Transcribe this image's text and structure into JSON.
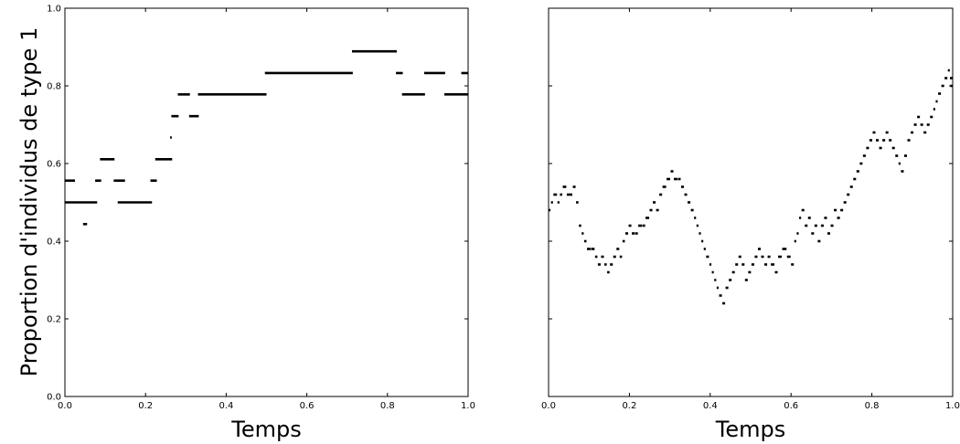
{
  "figure": {
    "ylabel": "Proportion d'individus de type 1",
    "ylabel_color": "#000000"
  },
  "chart_data": [
    {
      "type": "line",
      "title": "",
      "xlabel": "Temps",
      "ylabel": "Proportion d'individus de type 1",
      "xlim": [
        0.0,
        1.0
      ],
      "ylim": [
        0.0,
        1.0
      ],
      "x_ticks": [
        "0.0",
        "0.2",
        "0.4",
        "0.6",
        "0.8",
        "1.0"
      ],
      "y_ticks": [
        "0.0",
        "0.2",
        "0.4",
        "0.6",
        "0.8",
        "1.0"
      ],
      "grid": false,
      "legend": "none",
      "color": "#000000",
      "segments": [
        [
          0.0,
          0.025,
          0.556
        ],
        [
          0.0,
          0.08,
          0.5
        ],
        [
          0.045,
          0.055,
          0.444
        ],
        [
          0.075,
          0.09,
          0.556
        ],
        [
          0.087,
          0.123,
          0.611
        ],
        [
          0.121,
          0.149,
          0.556
        ],
        [
          0.131,
          0.216,
          0.5
        ],
        [
          0.212,
          0.228,
          0.556
        ],
        [
          0.224,
          0.266,
          0.611
        ],
        [
          0.261,
          0.265,
          0.667
        ],
        [
          0.264,
          0.282,
          0.722
        ],
        [
          0.28,
          0.31,
          0.778
        ],
        [
          0.308,
          0.332,
          0.722
        ],
        [
          0.33,
          0.5,
          0.778
        ],
        [
          0.496,
          0.714,
          0.833
        ],
        [
          0.712,
          0.823,
          0.889
        ],
        [
          0.821,
          0.838,
          0.833
        ],
        [
          0.836,
          0.893,
          0.778
        ],
        [
          0.891,
          0.943,
          0.833
        ],
        [
          0.941,
          1.0,
          0.778
        ],
        [
          0.983,
          1.0,
          0.833
        ]
      ]
    },
    {
      "type": "line",
      "title": "",
      "xlabel": "Temps",
      "ylabel": "",
      "xlim": [
        0.0,
        1.0
      ],
      "ylim": [
        0.0,
        1.0
      ],
      "x_ticks": [
        "0.0",
        "0.2",
        "0.4",
        "0.6",
        "0.8",
        "1.0"
      ],
      "y_ticks": [],
      "grid": false,
      "legend": "none",
      "color": "#000000",
      "path": [
        [
          0.0,
          0.48
        ],
        [
          0.006,
          0.5
        ],
        [
          0.012,
          0.52
        ],
        [
          0.022,
          0.5
        ],
        [
          0.028,
          0.52
        ],
        [
          0.035,
          0.54
        ],
        [
          0.045,
          0.52
        ],
        [
          0.06,
          0.54
        ],
        [
          0.068,
          0.5
        ],
        [
          0.075,
          0.44
        ],
        [
          0.082,
          0.42
        ],
        [
          0.088,
          0.4
        ],
        [
          0.095,
          0.38
        ],
        [
          0.105,
          0.38
        ],
        [
          0.115,
          0.36
        ],
        [
          0.122,
          0.34
        ],
        [
          0.13,
          0.36
        ],
        [
          0.138,
          0.34
        ],
        [
          0.145,
          0.32
        ],
        [
          0.152,
          0.34
        ],
        [
          0.16,
          0.36
        ],
        [
          0.168,
          0.38
        ],
        [
          0.176,
          0.36
        ],
        [
          0.183,
          0.4
        ],
        [
          0.19,
          0.42
        ],
        [
          0.198,
          0.44
        ],
        [
          0.206,
          0.42
        ],
        [
          0.215,
          0.42
        ],
        [
          0.222,
          0.44
        ],
        [
          0.232,
          0.44
        ],
        [
          0.24,
          0.46
        ],
        [
          0.25,
          0.48
        ],
        [
          0.258,
          0.5
        ],
        [
          0.266,
          0.48
        ],
        [
          0.274,
          0.52
        ],
        [
          0.282,
          0.54
        ],
        [
          0.292,
          0.56
        ],
        [
          0.302,
          0.58
        ],
        [
          0.31,
          0.56
        ],
        [
          0.32,
          0.56
        ],
        [
          0.328,
          0.54
        ],
        [
          0.336,
          0.52
        ],
        [
          0.344,
          0.5
        ],
        [
          0.352,
          0.48
        ],
        [
          0.36,
          0.46
        ],
        [
          0.366,
          0.44
        ],
        [
          0.372,
          0.42
        ],
        [
          0.378,
          0.4
        ],
        [
          0.384,
          0.38
        ],
        [
          0.39,
          0.36
        ],
        [
          0.398,
          0.34
        ],
        [
          0.404,
          0.32
        ],
        [
          0.41,
          0.3
        ],
        [
          0.416,
          0.28
        ],
        [
          0.422,
          0.26
        ],
        [
          0.43,
          0.24
        ],
        [
          0.438,
          0.28
        ],
        [
          0.446,
          0.3
        ],
        [
          0.454,
          0.32
        ],
        [
          0.462,
          0.34
        ],
        [
          0.47,
          0.36
        ],
        [
          0.478,
          0.34
        ],
        [
          0.486,
          0.3
        ],
        [
          0.494,
          0.32
        ],
        [
          0.502,
          0.34
        ],
        [
          0.51,
          0.36
        ],
        [
          0.518,
          0.38
        ],
        [
          0.526,
          0.36
        ],
        [
          0.534,
          0.34
        ],
        [
          0.542,
          0.36
        ],
        [
          0.55,
          0.34
        ],
        [
          0.56,
          0.32
        ],
        [
          0.568,
          0.36
        ],
        [
          0.578,
          0.38
        ],
        [
          0.59,
          0.36
        ],
        [
          0.6,
          0.34
        ],
        [
          0.608,
          0.4
        ],
        [
          0.614,
          0.42
        ],
        [
          0.62,
          0.46
        ],
        [
          0.626,
          0.48
        ],
        [
          0.634,
          0.44
        ],
        [
          0.642,
          0.46
        ],
        [
          0.65,
          0.42
        ],
        [
          0.658,
          0.44
        ],
        [
          0.666,
          0.4
        ],
        [
          0.674,
          0.44
        ],
        [
          0.682,
          0.46
        ],
        [
          0.69,
          0.42
        ],
        [
          0.698,
          0.44
        ],
        [
          0.706,
          0.48
        ],
        [
          0.714,
          0.46
        ],
        [
          0.722,
          0.48
        ],
        [
          0.73,
          0.5
        ],
        [
          0.738,
          0.52
        ],
        [
          0.746,
          0.54
        ],
        [
          0.754,
          0.56
        ],
        [
          0.762,
          0.58
        ],
        [
          0.77,
          0.6
        ],
        [
          0.778,
          0.62
        ],
        [
          0.786,
          0.64
        ],
        [
          0.794,
          0.66
        ],
        [
          0.802,
          0.68
        ],
        [
          0.81,
          0.66
        ],
        [
          0.818,
          0.64
        ],
        [
          0.826,
          0.66
        ],
        [
          0.834,
          0.68
        ],
        [
          0.842,
          0.66
        ],
        [
          0.85,
          0.64
        ],
        [
          0.858,
          0.62
        ],
        [
          0.866,
          0.6
        ],
        [
          0.872,
          0.58
        ],
        [
          0.88,
          0.62
        ],
        [
          0.888,
          0.66
        ],
        [
          0.896,
          0.68
        ],
        [
          0.904,
          0.7
        ],
        [
          0.912,
          0.72
        ],
        [
          0.92,
          0.7
        ],
        [
          0.928,
          0.68
        ],
        [
          0.936,
          0.7
        ],
        [
          0.944,
          0.72
        ],
        [
          0.952,
          0.74
        ],
        [
          0.958,
          0.76
        ],
        [
          0.964,
          0.78
        ],
        [
          0.972,
          0.8
        ],
        [
          0.98,
          0.82
        ],
        [
          0.988,
          0.84
        ],
        [
          0.994,
          0.8
        ],
        [
          1.0,
          0.82
        ]
      ]
    }
  ]
}
